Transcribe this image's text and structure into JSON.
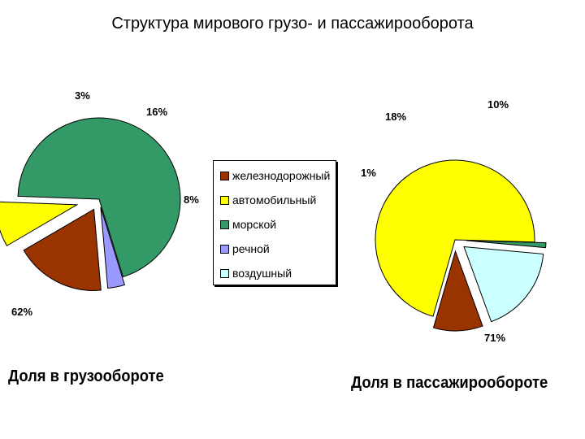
{
  "title": "Структура мирового грузо- и пассажирооборота",
  "legend": {
    "items": [
      {
        "label": "железнодорожный",
        "color": "#993300"
      },
      {
        "label": "автомобильный",
        "color": "#ffff00"
      },
      {
        "label": "морской",
        "color": "#339966"
      },
      {
        "label": "речной",
        "color": "#9999ff"
      },
      {
        "label": "воздушный",
        "color": "#ccffff"
      }
    ]
  },
  "chart_data": [
    {
      "type": "pie",
      "caption": "Доля в грузообороте",
      "slices": [
        {
          "category": "железнодорожный",
          "value": 16,
          "label": "16%",
          "color": "#993300"
        },
        {
          "category": "автомобильный",
          "value": 8,
          "label": "8%",
          "color": "#ffff00"
        },
        {
          "category": "морской",
          "value": 62,
          "label": "62%",
          "color": "#339966"
        },
        {
          "category": "речной",
          "value": 3,
          "label": "3%",
          "color": "#9999ff"
        }
      ]
    },
    {
      "type": "pie",
      "caption": "Доля в пассажирообороте",
      "slices": [
        {
          "category": "железнодорожный",
          "value": 10,
          "label": "10%",
          "color": "#993300"
        },
        {
          "category": "автомобильный",
          "value": 71,
          "label": "71%",
          "color": "#ffff00"
        },
        {
          "category": "морской",
          "value": 1,
          "label": "1%",
          "color": "#339966"
        },
        {
          "category": "воздушный",
          "value": 18,
          "label": "18%",
          "color": "#ccffff"
        }
      ]
    }
  ]
}
